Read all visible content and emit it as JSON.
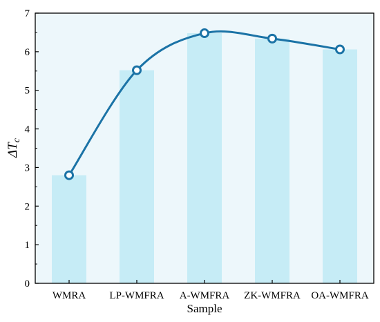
{
  "chart_data": {
    "type": "bar",
    "overlay": "line",
    "categories": [
      "WMRA",
      "LP-WMFRA",
      "A-WMFRA",
      "ZK-WMFRA",
      "OA-WMFRA"
    ],
    "values": [
      2.8,
      5.52,
      6.48,
      6.34,
      6.06
    ],
    "xlabel": "Sample",
    "ylabel": "ΔT",
    "ylabel_subscript": "c",
    "ylim": [
      0,
      7
    ],
    "yticks": [
      0,
      1,
      2,
      3,
      4,
      5,
      6,
      7
    ],
    "grid": false,
    "legend": "none",
    "colors": {
      "plot_background": "#edf7fb",
      "bar_fill": "#c6ecf6",
      "line": "#1b73a6",
      "marker_fill": "#ffffff"
    }
  }
}
